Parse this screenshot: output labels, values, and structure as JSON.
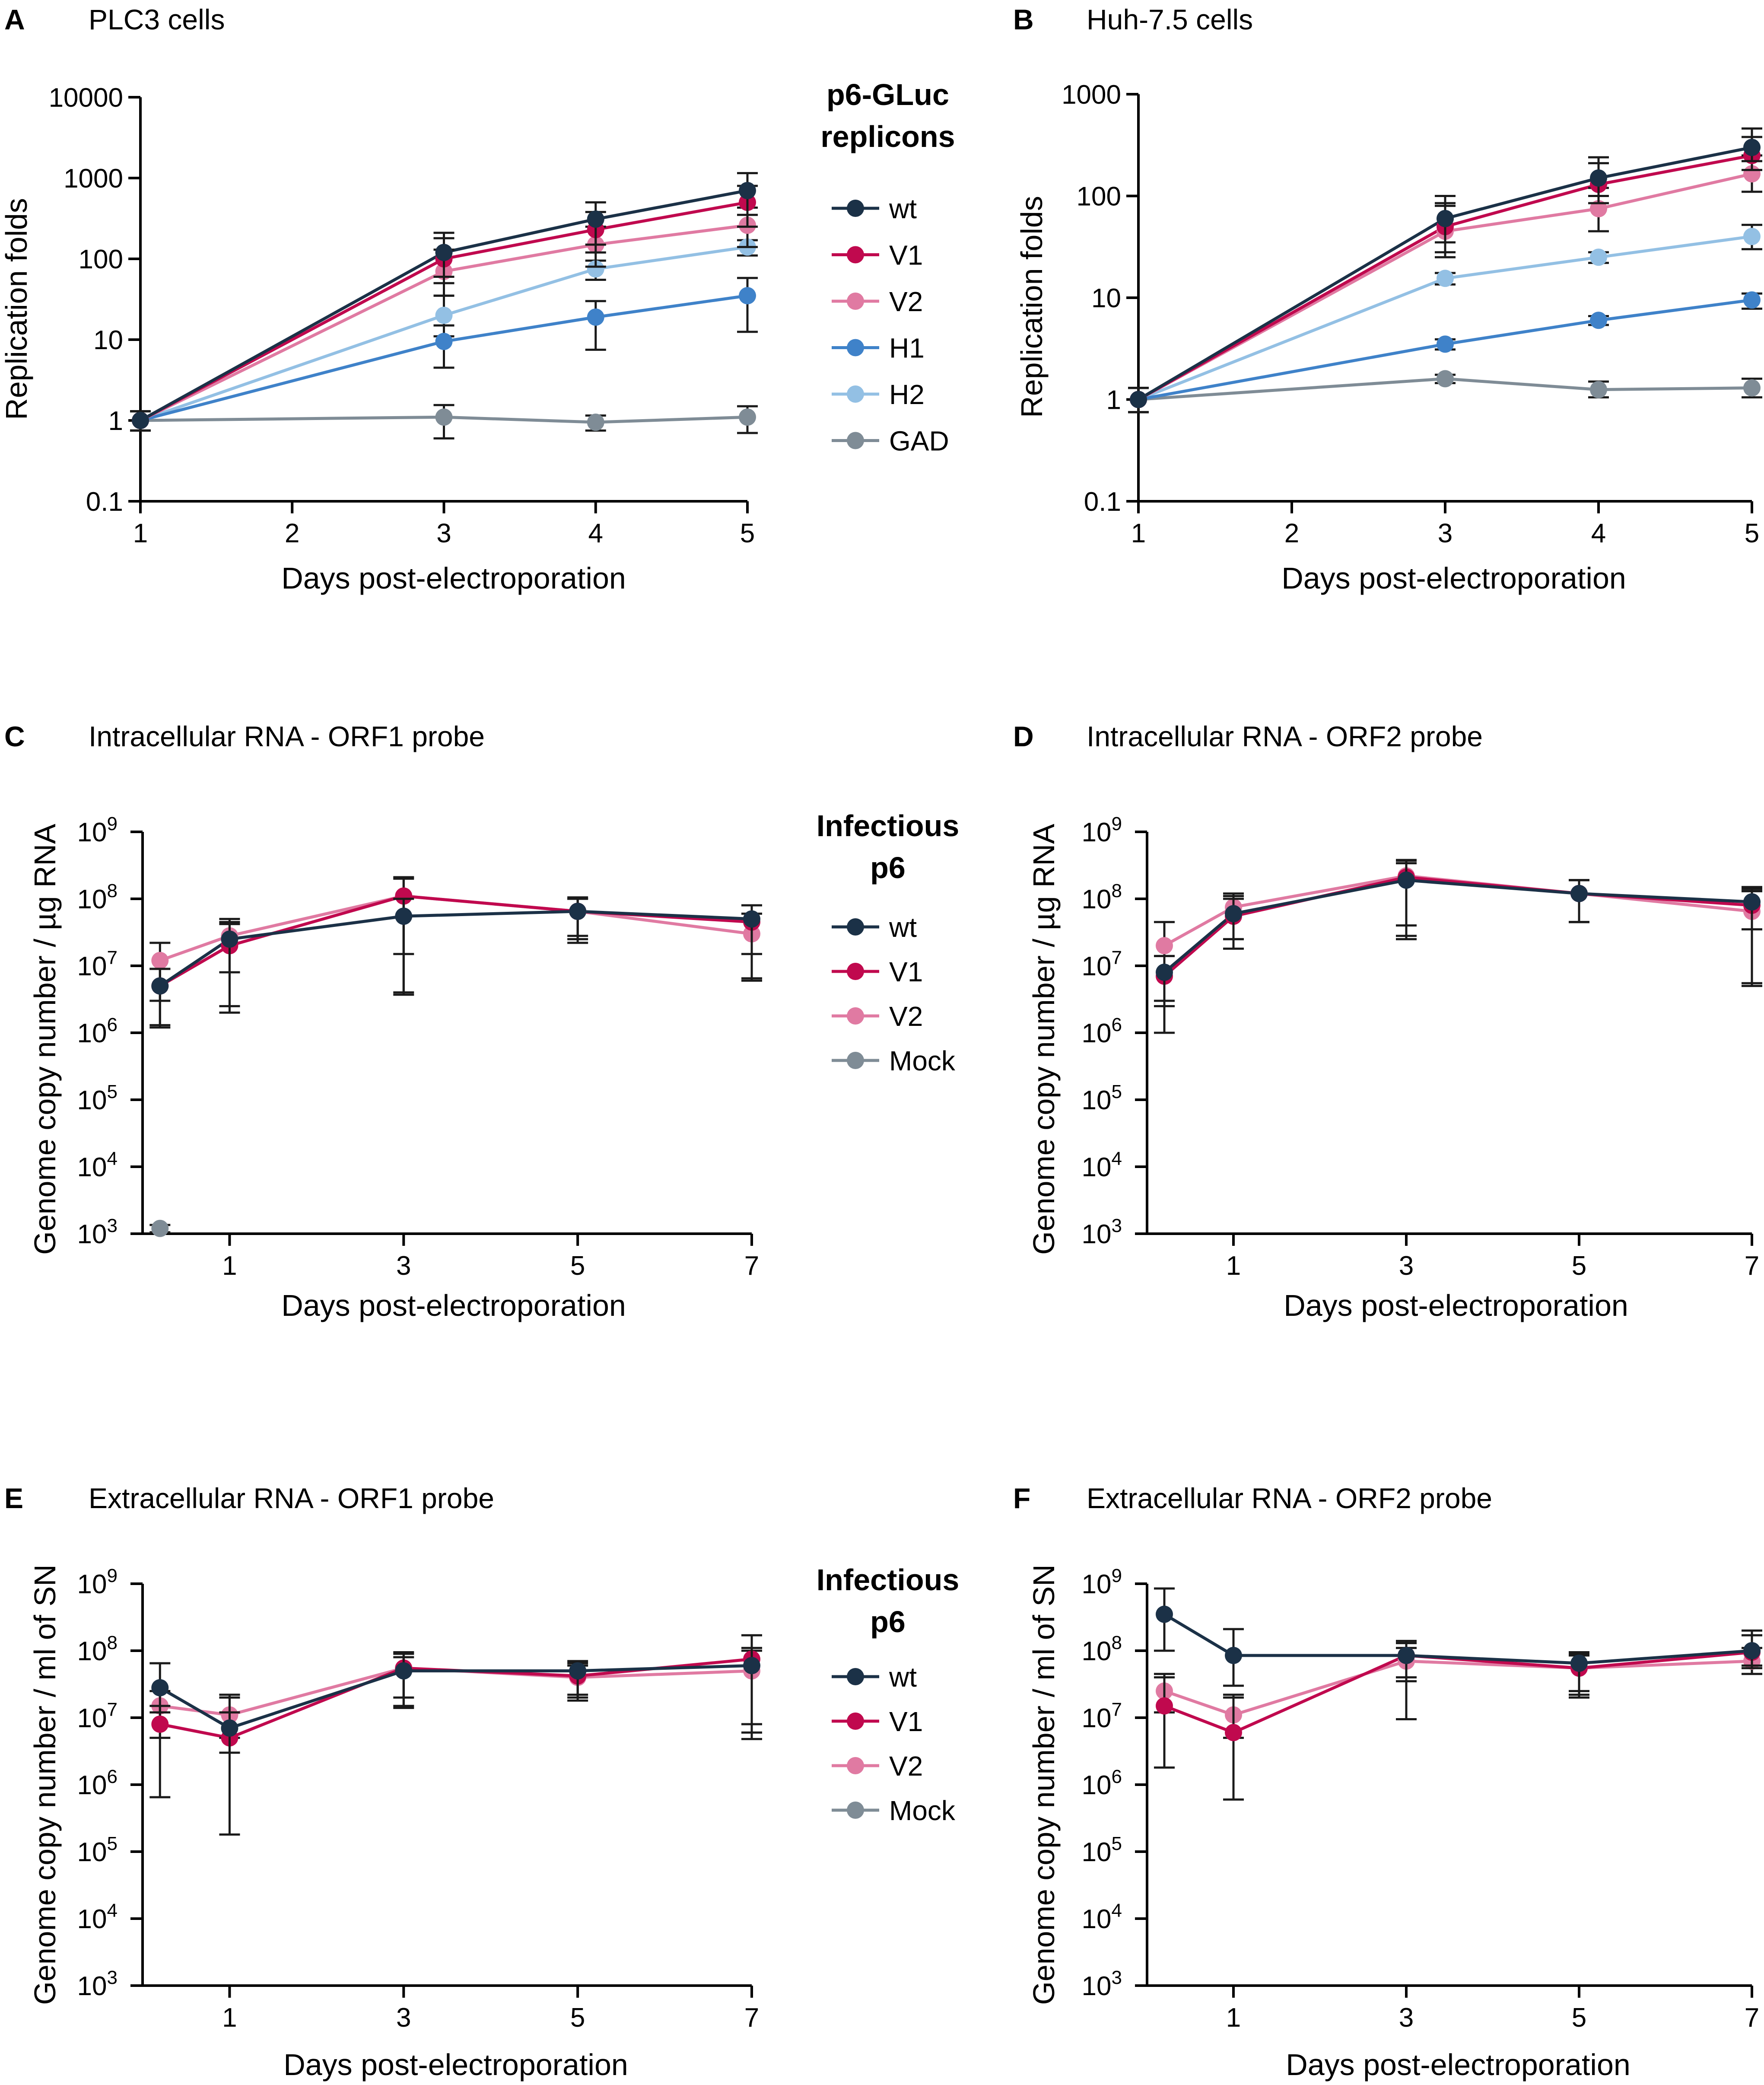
{
  "colors": {
    "wt": "#1b3147",
    "V1": "#c0094e",
    "V2": "#e07aa2",
    "H1": "#3f82c9",
    "H2": "#93c0e4",
    "GAD": "#7f8c96",
    "Mock": "#7f8c96",
    "axis": "#000000"
  },
  "legend_top": {
    "title_line1": "p6-GLuc",
    "title_line2": "replicons",
    "items": [
      "wt",
      "V1",
      "V2",
      "H1",
      "H2",
      "GAD"
    ]
  },
  "legend_mid": {
    "title_line1": "Infectious",
    "title_line2": "p6",
    "items": [
      "wt",
      "V1",
      "V2",
      "Mock"
    ]
  },
  "legend_bot": {
    "title_line1": "Infectious",
    "title_line2": "p6",
    "items": [
      "wt",
      "V1",
      "V2",
      "Mock"
    ]
  },
  "chart_data": [
    {
      "panel": "A",
      "type": "line",
      "title": "PLC3 cells",
      "xlabel": "Days post-electroporation",
      "ylabel": "Replication folds",
      "yscale": "log",
      "ylim": [
        0.1,
        10000
      ],
      "yticks": [
        "0.1",
        "1",
        "10",
        "100",
        "1000",
        "10000"
      ],
      "xlim": [
        1,
        5
      ],
      "xticks": [
        1,
        2,
        3,
        4,
        5
      ],
      "series": [
        {
          "name": "wt",
          "x": [
            1,
            3,
            4,
            5
          ],
          "values": [
            1,
            120,
            310,
            700
          ],
          "err_lo": [
            0.75,
            60,
            150,
            350
          ],
          "err_hi": [
            1.3,
            210,
            500,
            1150
          ]
        },
        {
          "name": "V1",
          "x": [
            1,
            3,
            4,
            5
          ],
          "values": [
            1,
            100,
            230,
            500
          ],
          "err_lo": [
            0.75,
            50,
            120,
            250
          ],
          "err_hi": [
            1.3,
            180,
            380,
            800
          ]
        },
        {
          "name": "V2",
          "x": [
            1,
            3,
            4,
            5
          ],
          "values": [
            1,
            70,
            150,
            260
          ],
          "err_lo": [
            0.75,
            35,
            80,
            140
          ],
          "err_hi": [
            1.3,
            130,
            250,
            430
          ]
        },
        {
          "name": "H1",
          "x": [
            1,
            3,
            4,
            5
          ],
          "values": [
            1,
            9.5,
            19,
            35
          ],
          "err_lo": [
            0.75,
            4.5,
            7.5,
            12.5
          ],
          "err_hi": [
            1.3,
            15,
            30,
            58
          ]
        },
        {
          "name": "H2",
          "x": [
            1,
            3,
            4,
            5
          ],
          "values": [
            1,
            20,
            75,
            140
          ],
          "err_lo": [
            0.75,
            11,
            55,
            110
          ],
          "err_hi": [
            1.3,
            35,
            95,
            170
          ]
        },
        {
          "name": "GAD",
          "x": [
            1,
            3,
            4,
            5
          ],
          "values": [
            1,
            1.1,
            0.95,
            1.1
          ],
          "err_lo": [
            0.75,
            0.6,
            0.75,
            0.7
          ],
          "err_hi": [
            1.3,
            1.55,
            1.15,
            1.5
          ]
        }
      ]
    },
    {
      "panel": "B",
      "type": "line",
      "title": "Huh-7.5 cells",
      "xlabel": "Days post-electroporation",
      "ylabel": "Replication folds",
      "yscale": "log",
      "ylim": [
        0.1,
        1000
      ],
      "yticks": [
        "0.1",
        "1",
        "10",
        "100",
        "1000"
      ],
      "xlim": [
        1,
        5
      ],
      "xticks": [
        1,
        2,
        3,
        4,
        5
      ],
      "series": [
        {
          "name": "wt",
          "x": [
            1,
            3,
            4,
            5
          ],
          "values": [
            1,
            60,
            150,
            300
          ],
          "err_lo": [
            0.75,
            35,
            100,
            220
          ],
          "err_hi": [
            1.3,
            100,
            240,
            460
          ]
        },
        {
          "name": "V1",
          "x": [
            1,
            3,
            4,
            5
          ],
          "values": [
            1,
            50,
            130,
            250
          ],
          "err_lo": [
            0.75,
            28,
            85,
            180
          ],
          "err_hi": [
            1.3,
            85,
            210,
            380
          ]
        },
        {
          "name": "V2",
          "x": [
            1,
            3,
            4,
            5
          ],
          "values": [
            1,
            45,
            75,
            165
          ],
          "err_lo": [
            0.75,
            25,
            45,
            110
          ],
          "err_hi": [
            1.3,
            80,
            120,
            250
          ]
        },
        {
          "name": "H1",
          "x": [
            1,
            3,
            4,
            5
          ],
          "values": [
            1,
            3.5,
            6,
            9.5
          ],
          "err_lo": [
            0.75,
            3.1,
            5.4,
            7.8
          ],
          "err_hi": [
            1.3,
            3.9,
            6.6,
            11
          ]
        },
        {
          "name": "H2",
          "x": [
            1,
            3,
            4,
            5
          ],
          "values": [
            1,
            15.5,
            25,
            40
          ],
          "err_lo": [
            0.75,
            13.5,
            22,
            30
          ],
          "err_hi": [
            1.3,
            17.5,
            28,
            52
          ]
        },
        {
          "name": "GAD",
          "x": [
            1,
            3,
            4,
            5
          ],
          "values": [
            1,
            1.6,
            1.25,
            1.3
          ],
          "err_lo": [
            0.75,
            1.45,
            1.05,
            1.05
          ],
          "err_hi": [
            1.3,
            1.75,
            1.5,
            1.6
          ]
        }
      ]
    },
    {
      "panel": "C",
      "type": "line",
      "title": "Intracellular RNA - ORF1 probe",
      "xlabel": "Days post-electroporation",
      "ylabel": "Genome copy number / µg RNA",
      "yscale": "log",
      "ylim": [
        1000,
        1000000000
      ],
      "yticks": [
        3,
        4,
        5,
        6,
        7,
        8,
        9
      ],
      "xlim": [
        0,
        7
      ],
      "xticks": [
        1,
        3,
        5,
        7
      ],
      "series": [
        {
          "name": "wt",
          "x": [
            0.2,
            1,
            3,
            5,
            7
          ],
          "values": [
            5000000,
            25000000,
            55000000,
            65000000,
            50000000
          ],
          "err_lo": [
            1200000,
            8000000,
            15000000,
            22000000,
            15000000
          ],
          "err_hi": [
            9000000,
            45000000,
            100000000,
            105000000,
            80000000
          ]
        },
        {
          "name": "V1",
          "x": [
            0.2,
            1,
            3,
            5,
            7
          ],
          "values": [
            5000000,
            20000000,
            110000000,
            65000000,
            45000000
          ],
          "err_lo": [
            1300000,
            2000000,
            3700000,
            25000000,
            6000000
          ],
          "err_hi": [
            9000000,
            42000000,
            210000000,
            100000000,
            80000000
          ]
        },
        {
          "name": "V2",
          "x": [
            0.2,
            1,
            3,
            5,
            7
          ],
          "values": [
            12000000,
            28000000,
            110000000,
            65000000,
            30000000
          ],
          "err_lo": [
            3000000,
            2500000,
            4000000,
            28000000,
            6500000
          ],
          "err_hi": [
            22000000,
            50000000,
            200000000,
            100000000,
            60000000
          ]
        },
        {
          "name": "Mock",
          "x": [
            0.2
          ],
          "values": [
            1200
          ],
          "err_lo": [
            1050
          ],
          "err_hi": [
            1350
          ]
        }
      ]
    },
    {
      "panel": "D",
      "type": "line",
      "title": "Intracellular RNA - ORF2 probe",
      "xlabel": "Days post-electroporation",
      "ylabel": "Genome copy number / µg RNA",
      "yscale": "log",
      "ylim": [
        1000,
        1000000000
      ],
      "yticks": [
        3,
        4,
        5,
        6,
        7,
        8,
        9
      ],
      "xlim": [
        0,
        7
      ],
      "xticks": [
        1,
        3,
        5,
        7
      ],
      "series": [
        {
          "name": "wt",
          "x": [
            0.2,
            1,
            3,
            5,
            7
          ],
          "values": [
            8000000,
            60000000,
            190000000,
            120000000,
            90000000
          ],
          "err_lo": [
            2500000,
            25000000,
            25000000,
            45000000,
            35000000
          ],
          "err_hi": [
            14000000,
            110000000,
            340000000,
            190000000,
            150000000
          ]
        },
        {
          "name": "V1",
          "x": [
            0.2,
            1,
            3,
            5,
            7
          ],
          "values": [
            7000000,
            55000000,
            210000000,
            120000000,
            80000000
          ],
          "err_lo": [
            1000000,
            18000000,
            28000000,
            45000000,
            5000000
          ],
          "err_hi": [
            14000000,
            100000000,
            370000000,
            190000000,
            140000000
          ]
        },
        {
          "name": "V2",
          "x": [
            0.2,
            1,
            3,
            5,
            7
          ],
          "values": [
            20000000,
            75000000,
            220000000,
            120000000,
            65000000
          ],
          "err_lo": [
            3000000,
            25000000,
            40000000,
            45000000,
            5500000
          ],
          "err_hi": [
            45000000,
            120000000,
            380000000,
            190000000,
            130000000
          ]
        }
      ]
    },
    {
      "panel": "E",
      "type": "line",
      "title": "Extracellular RNA - ORF1 probe",
      "xlabel": "Days post-electroporation",
      "ylabel": "Genome copy number / ml of SN",
      "yscale": "log",
      "ylim": [
        1000,
        1000000000
      ],
      "yticks": [
        3,
        4,
        5,
        6,
        7,
        8,
        9
      ],
      "xlim": [
        0,
        7
      ],
      "xticks": [
        1,
        3,
        5,
        7
      ],
      "series": [
        {
          "name": "wt",
          "x": [
            0.2,
            1,
            3,
            5,
            7
          ],
          "values": [
            28000000,
            7000000,
            50000000,
            50000000,
            60000000
          ],
          "err_lo": [
            12000000,
            3000000,
            15000000,
            22000000,
            8000000
          ],
          "err_hi": [
            65000000,
            22000000,
            90000000,
            70000000,
            110000000
          ]
        },
        {
          "name": "V1",
          "x": [
            0.2,
            1,
            3,
            5,
            7
          ],
          "values": [
            8000000,
            5000000,
            55000000,
            42000000,
            75000000
          ],
          "err_lo": [
            650000,
            180000,
            14000000,
            20000000,
            4800000
          ],
          "err_hi": [
            15000000,
            12000000,
            95000000,
            65000000,
            170000000
          ]
        },
        {
          "name": "V2",
          "x": [
            0.2,
            1,
            3,
            5,
            7
          ],
          "values": [
            15000000,
            11000000,
            55000000,
            40000000,
            50000000
          ],
          "err_lo": [
            5000000,
            5000000,
            20000000,
            18000000,
            6000000
          ],
          "err_hi": [
            25000000,
            20000000,
            80000000,
            60000000,
            100000000
          ]
        }
      ]
    },
    {
      "panel": "F",
      "type": "line",
      "title": "Extracellular RNA - ORF2 probe",
      "xlabel": "Days post-electroporation",
      "ylabel": "Genome copy number / ml of SN",
      "yscale": "log",
      "ylim": [
        1000,
        1000000000
      ],
      "yticks": [
        3,
        4,
        5,
        6,
        7,
        8,
        9
      ],
      "xlim": [
        0,
        7
      ],
      "xticks": [
        1,
        3,
        5,
        7
      ],
      "series": [
        {
          "name": "wt",
          "x": [
            0.2,
            1,
            3,
            5,
            7
          ],
          "values": [
            350000000,
            85000000,
            85000000,
            65000000,
            100000000
          ],
          "err_lo": [
            100000000,
            30000000,
            35000000,
            25000000,
            60000000
          ],
          "err_hi": [
            850000000,
            210000000,
            130000000,
            95000000,
            200000000
          ]
        },
        {
          "name": "V1",
          "x": [
            0.2,
            1,
            3,
            5,
            7
          ],
          "values": [
            15000000,
            6000000,
            85000000,
            55000000,
            95000000
          ],
          "err_lo": [
            1800000,
            600000,
            9500000,
            20000000,
            55000000
          ],
          "err_hi": [
            40000000,
            20000000,
            140000000,
            90000000,
            170000000
          ]
        },
        {
          "name": "V2",
          "x": [
            0.2,
            1,
            3,
            5,
            7
          ],
          "values": [
            25000000,
            11000000,
            70000000,
            55000000,
            70000000
          ],
          "err_lo": [
            12000000,
            5000000,
            40000000,
            22000000,
            45000000
          ],
          "err_hi": [
            45000000,
            22000000,
            110000000,
            85000000,
            110000000
          ]
        }
      ]
    }
  ]
}
